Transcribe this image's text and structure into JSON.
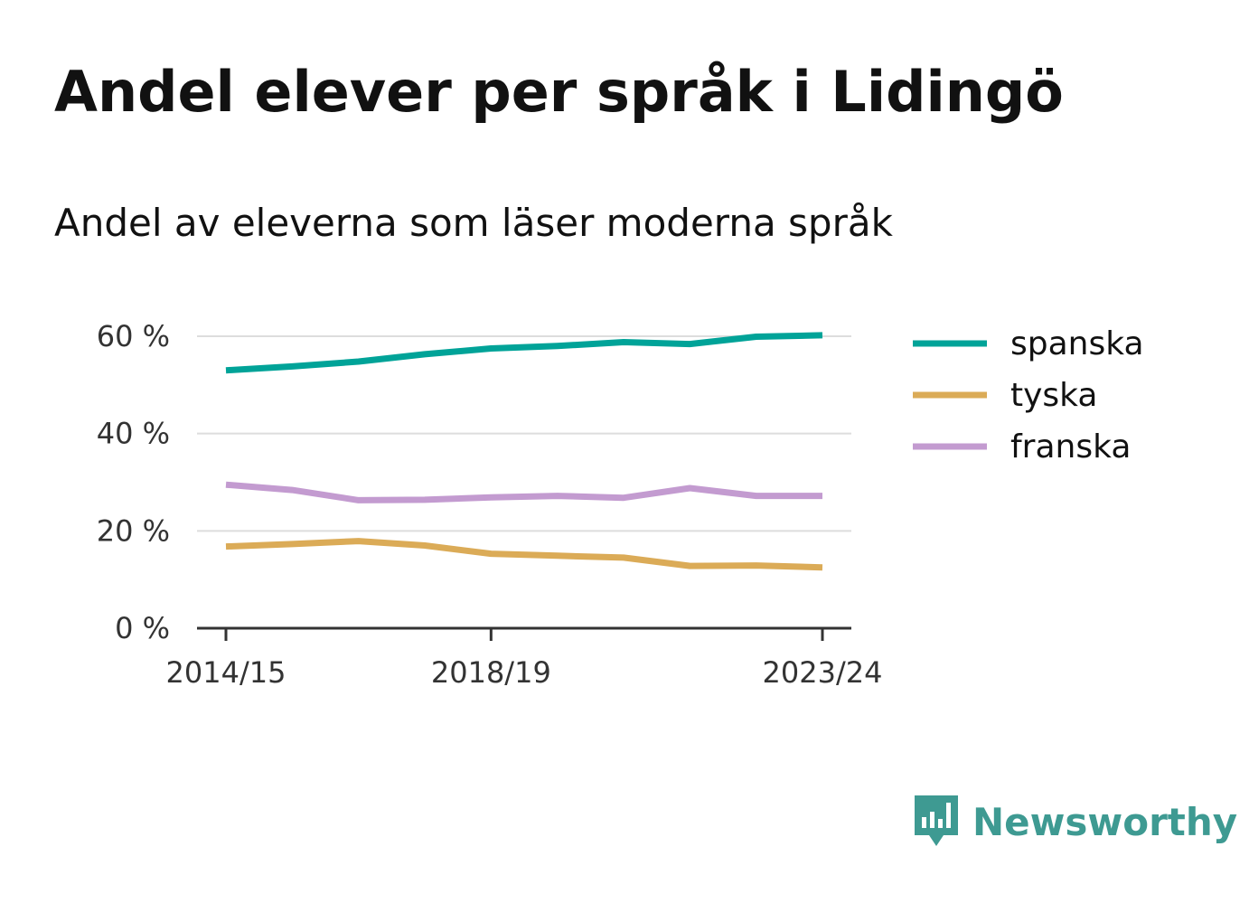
{
  "header": {
    "title": "Andel elever per språk i Lidingö",
    "subtitle": "Andel av eleverna som läser moderna språk"
  },
  "brand": {
    "name": "Newsworthy",
    "icon": "newsworthy-logo-icon",
    "color": "#3e9a92"
  },
  "chart_data": {
    "type": "line",
    "title": "Andel elever per språk i Lidingö",
    "subtitle": "Andel av eleverna som läser moderna språk",
    "xlabel": "",
    "ylabel": "",
    "x": [
      "2014/15",
      "2015/16",
      "2016/17",
      "2017/18",
      "2018/19",
      "2019/20",
      "2020/21",
      "2021/22",
      "2022/23",
      "2023/24"
    ],
    "x_tick_labels": [
      "2014/15",
      "2018/19",
      "2023/24"
    ],
    "y_ticks": [
      0,
      20,
      40,
      60
    ],
    "y_tick_labels": [
      "0 %",
      "20 %",
      "40 %",
      "60 %"
    ],
    "ylim": [
      0,
      60
    ],
    "grid": true,
    "legend_position": "right",
    "series": [
      {
        "name": "spanska",
        "color": "#00a398",
        "values": [
          53.0,
          53.8,
          54.8,
          56.3,
          57.5,
          58.0,
          58.8,
          58.4,
          59.9,
          60.2
        ]
      },
      {
        "name": "tyska",
        "color": "#dbab57",
        "values": [
          16.8,
          17.3,
          17.9,
          17.0,
          15.3,
          14.9,
          14.5,
          12.8,
          12.9,
          12.5
        ]
      },
      {
        "name": "franska",
        "color": "#c39bd0",
        "values": [
          29.5,
          28.4,
          26.3,
          26.4,
          26.9,
          27.2,
          26.8,
          28.8,
          27.2,
          27.2
        ]
      }
    ]
  }
}
